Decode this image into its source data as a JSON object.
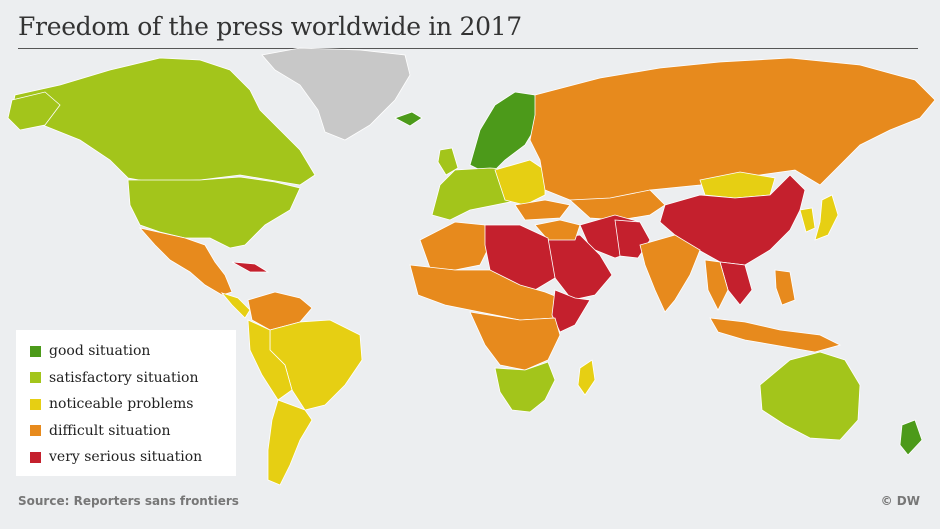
{
  "title": "Freedom of the press worldwide in 2017",
  "legend": [
    {
      "label": "good situation",
      "color": "#4c9a1a"
    },
    {
      "label": "satisfactory situation",
      "color": "#a3c51b"
    },
    {
      "label": "noticeable problems",
      "color": "#e6cf13"
    },
    {
      "label": "difficult situation",
      "color": "#e78a1d"
    },
    {
      "label": "very serious situation",
      "color": "#c4202d"
    }
  ],
  "no_data_color": "#c8c8c8",
  "source": "Source: Reporters sans frontiers",
  "credit": "© DW"
}
